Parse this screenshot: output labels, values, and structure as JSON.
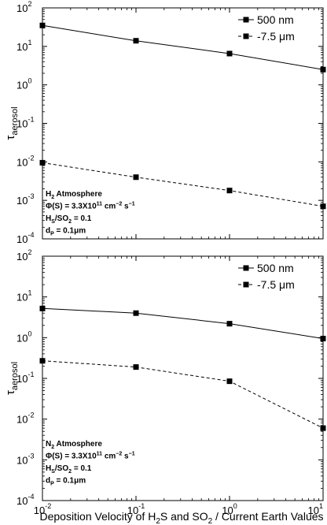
{
  "chart_data": [
    {
      "type": "line",
      "x_scale": "log",
      "y_scale": "log",
      "xlim": [
        0.01,
        10
      ],
      "ylim": [
        0.0001,
        100
      ],
      "x_ticks": [
        {
          "value": 0.01,
          "base": "10",
          "exp": "-2"
        },
        {
          "value": 0.1,
          "base": "10",
          "exp": "-1"
        },
        {
          "value": 1,
          "base": "10",
          "exp": "0"
        },
        {
          "value": 10,
          "base": "10",
          "exp": "1"
        }
      ],
      "y_ticks": [
        {
          "value": 0.0001,
          "base": "10",
          "exp": "-4"
        },
        {
          "value": 0.001,
          "base": "10",
          "exp": "-3"
        },
        {
          "value": 0.01,
          "base": "10",
          "exp": "-2"
        },
        {
          "value": 0.1,
          "base": "10",
          "exp": "-1"
        },
        {
          "value": 1,
          "base": "10",
          "exp": "0"
        },
        {
          "value": 10,
          "base": "10",
          "exp": "1"
        },
        {
          "value": 100,
          "base": "10",
          "exp": "2"
        }
      ],
      "ylabel": {
        "main": "τ",
        "sub": "aerosol"
      },
      "legend_position": "top-right",
      "series": [
        {
          "name": "500 nm",
          "style": "solid",
          "x": [
            0.01,
            0.1,
            1,
            10
          ],
          "y": [
            35,
            14,
            6.5,
            2.5
          ]
        },
        {
          "name": "-7.5 μm",
          "style": "dashed",
          "x": [
            0.01,
            0.1,
            1,
            10
          ],
          "y": [
            0.0095,
            0.004,
            0.0018,
            0.0007
          ]
        }
      ],
      "annotation": {
        "atmosphere": {
          "pre": "H",
          "sub": "2",
          "post": " Atmosphere"
        },
        "flux": {
          "pre": "Φ(S) = 3.3X10",
          "sup1": "11",
          "mid": " cm",
          "sup2": "−2",
          "post": " s",
          "sup3": "−1"
        },
        "ratio": {
          "a": "H",
          "asub": "S",
          "b": "/SO",
          "bsub": "2",
          "c": " = 0.1"
        },
        "dp": {
          "a": "d",
          "asub": "P",
          "b": " = 0.1μm"
        }
      }
    },
    {
      "type": "line",
      "x_scale": "log",
      "y_scale": "log",
      "xlim": [
        0.01,
        10
      ],
      "ylim": [
        0.0001,
        100
      ],
      "x_ticks": [
        {
          "value": 0.01,
          "base": "10",
          "exp": "-2"
        },
        {
          "value": 0.1,
          "base": "10",
          "exp": "-1"
        },
        {
          "value": 1,
          "base": "10",
          "exp": "0"
        },
        {
          "value": 10,
          "base": "10",
          "exp": "1"
        }
      ],
      "y_ticks": [
        {
          "value": 0.0001,
          "base": "10",
          "exp": "-4"
        },
        {
          "value": 0.001,
          "base": "10",
          "exp": "-3"
        },
        {
          "value": 0.01,
          "base": "10",
          "exp": "-2"
        },
        {
          "value": 0.1,
          "base": "10",
          "exp": "-1"
        },
        {
          "value": 1,
          "base": "10",
          "exp": "0"
        },
        {
          "value": 10,
          "base": "10",
          "exp": "1"
        },
        {
          "value": 100,
          "base": "10",
          "exp": "2"
        }
      ],
      "ylabel": {
        "main": "τ",
        "sub": "aerosol"
      },
      "legend_position": "top-right",
      "series": [
        {
          "name": "500 nm",
          "style": "solid",
          "x": [
            0.01,
            0.1,
            1,
            10
          ],
          "y": [
            5.2,
            4.0,
            2.2,
            0.95
          ]
        },
        {
          "name": "-7.5 μm",
          "style": "dashed",
          "x": [
            0.01,
            0.1,
            1,
            10
          ],
          "y": [
            0.27,
            0.19,
            0.085,
            0.006
          ]
        }
      ],
      "annotation": {
        "atmosphere": {
          "pre": "N",
          "sub": "2",
          "post": " Atmosphere"
        },
        "flux": {
          "pre": "Φ(S) = 3.3X10",
          "sup1": "11",
          "mid": " cm",
          "sup2": "−2",
          "post": " s",
          "sup3": "−1"
        },
        "ratio": {
          "a": "H",
          "asub": "S",
          "b": "/SO",
          "bsub": "2",
          "c": " = 0.1"
        },
        "dp": {
          "a": "d",
          "asub": "P",
          "b": " = 0.1μm"
        }
      }
    }
  ],
  "xlabel": {
    "a": "Deposition Velocity of H",
    "asub": "2",
    "b": "S and SO",
    "bsub": "2",
    "c": " / Current Earth Values"
  },
  "colors": {
    "line": "#000000",
    "background": "#ffffff"
  }
}
